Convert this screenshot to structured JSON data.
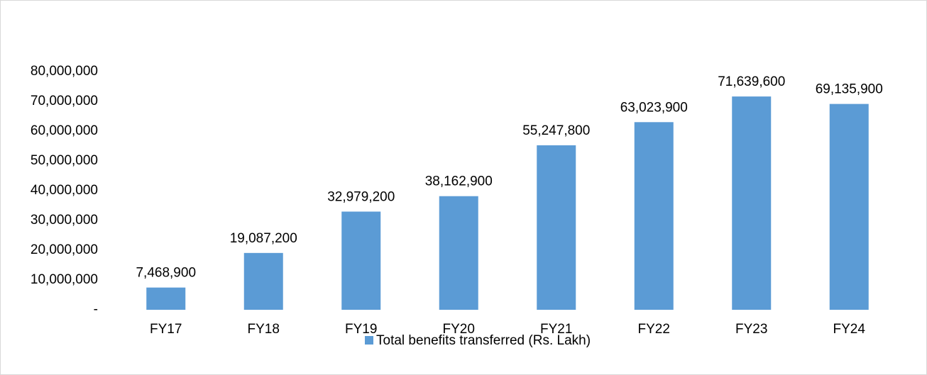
{
  "chart_data": {
    "type": "bar",
    "categories": [
      "FY17",
      "FY18",
      "FY19",
      "FY20",
      "FY21",
      "FY22",
      "FY23",
      "FY24"
    ],
    "series": [
      {
        "name": "Total benefits transferred (Rs. Lakh)",
        "color": "#5b9bd5",
        "values": [
          7468900,
          19087200,
          32979200,
          38162900,
          55247800,
          63023900,
          71639600,
          69135900
        ],
        "value_labels": [
          "7,468,900",
          "19,087,200",
          "32,979,200",
          "38,162,900",
          "55,247,800",
          "63,023,900",
          "71,639,600",
          "69,135,900"
        ]
      }
    ],
    "ylim": [
      0,
      80000000
    ],
    "yticks": [
      {
        "value": 0,
        "label": "-"
      },
      {
        "value": 10000000,
        "label": "10,000,000"
      },
      {
        "value": 20000000,
        "label": "20,000,000"
      },
      {
        "value": 30000000,
        "label": "30,000,000"
      },
      {
        "value": 40000000,
        "label": "40,000,000"
      },
      {
        "value": 50000000,
        "label": "50,000,000"
      },
      {
        "value": 60000000,
        "label": "60,000,000"
      },
      {
        "value": 70000000,
        "label": "70,000,000"
      },
      {
        "value": 80000000,
        "label": "80,000,000"
      }
    ],
    "grid": false,
    "legend": "bottom"
  }
}
